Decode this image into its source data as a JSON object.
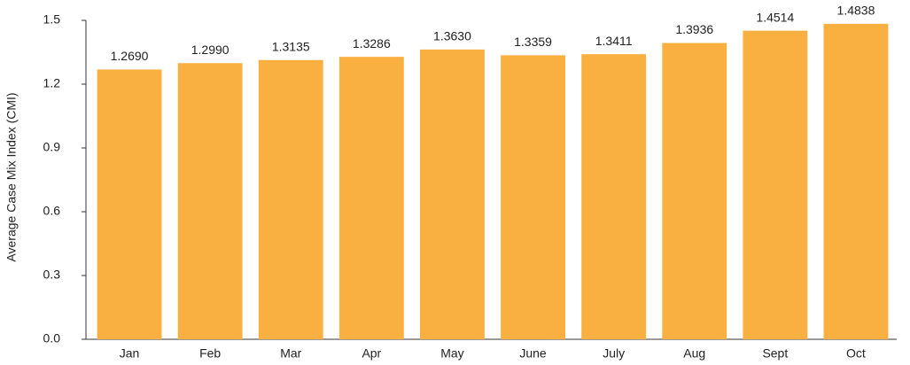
{
  "chart_data": {
    "type": "bar",
    "y_label": "Average Case Mix Index (CMI)",
    "categories": [
      "Jan",
      "Feb",
      "Mar",
      "Apr",
      "May",
      "June",
      "July",
      "Aug",
      "Sept",
      "Oct"
    ],
    "values": [
      1.269,
      1.299,
      1.3135,
      1.3286,
      1.363,
      1.3359,
      1.3411,
      1.3936,
      1.4514,
      1.4838
    ],
    "value_labels": [
      "1.2690",
      "1.2990",
      "1.3135",
      "1.3286",
      "1.3630",
      "1.3359",
      "1.3411",
      "1.3936",
      "1.4514",
      "1.4838"
    ],
    "color": "#f9b041",
    "ylim": [
      0,
      1.5
    ],
    "yticks": [
      {
        "value": 0,
        "label": "0.0"
      },
      0.3,
      0.6,
      0.9,
      1.2,
      1.5
    ],
    "grid": false
  }
}
